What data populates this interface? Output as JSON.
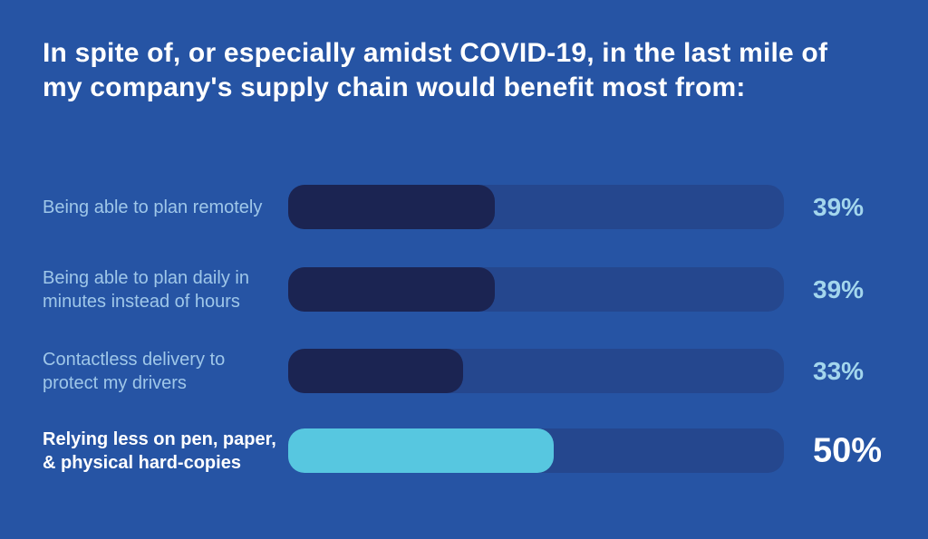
{
  "colors": {
    "background": "#2654A4",
    "bar_track": "#25478E",
    "bar_fill": "#1B2452",
    "bar_fill_highlight": "#57C7E0",
    "label_text": "#9FC7E9",
    "value_text": "#A3D6ED",
    "title_text": "#FFFFFF"
  },
  "title": {
    "text": "In spite of, or especially amidst COVID-19, in the last mile of\nmy company's supply chain would benefit most from:"
  },
  "rows": [
    {
      "label": "Being able to plan remotely",
      "value": 39,
      "value_label": "39%",
      "highlight": false
    },
    {
      "label": "Being able to plan daily in\nminutes instead of hours",
      "value": 39,
      "value_label": "39%",
      "highlight": false
    },
    {
      "label": "Contactless delivery to\nprotect my drivers",
      "value": 33,
      "value_label": "33%",
      "highlight": false
    },
    {
      "label": "Relying less on pen, paper,\n& physical hard-copies",
      "value": 50,
      "value_label": "50%",
      "highlight": true
    }
  ],
  "chart_data": {
    "type": "bar",
    "orientation": "horizontal",
    "title": "In spite of, or especially amidst COVID-19, in the last mile of my company's supply chain would benefit most from:",
    "categories": [
      "Being able to plan remotely",
      "Being able to plan daily in minutes instead of hours",
      "Contactless delivery to protect my drivers",
      "Relying less on pen, paper, & physical hard-copies"
    ],
    "values": [
      39,
      39,
      33,
      50
    ],
    "value_labels": [
      "39%",
      "39%",
      "33%",
      "50%"
    ],
    "unit": "percent",
    "xlim": [
      0,
      100
    ],
    "highlighted_category": "Relying less on pen, paper, & physical hard-copies",
    "legend": false,
    "grid": false
  }
}
